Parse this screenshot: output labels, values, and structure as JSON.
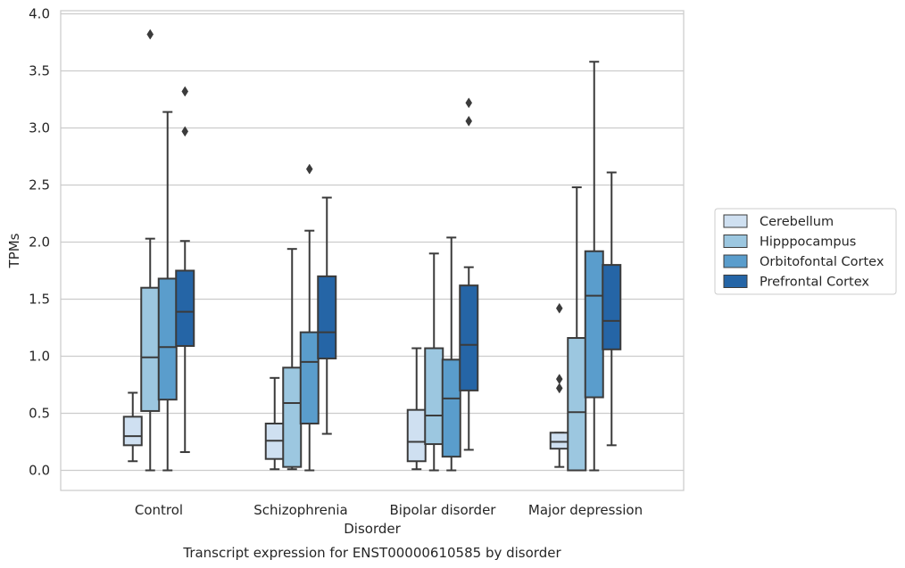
{
  "chart_data": {
    "type": "box",
    "title": "Transcript expression for ENST00000610585 by disorder",
    "xlabel": "Disorder",
    "ylabel": "TPMs",
    "ylim": [
      -0.18,
      4.03
    ],
    "yticks": [
      "0.0",
      "0.5",
      "1.0",
      "1.5",
      "2.0",
      "2.5",
      "3.0",
      "3.5",
      "4.0"
    ],
    "ytick_values": [
      0,
      0.5,
      1,
      1.5,
      2,
      2.5,
      3,
      3.5,
      4
    ],
    "grid": "horizontal",
    "legend_position": "right",
    "categories": [
      "Control",
      "Schizophrenia",
      "Bipolar disorder",
      "Major depression"
    ],
    "series": [
      {
        "name": "Cerebellum",
        "color": "#cfe0f1",
        "boxes": [
          {
            "whislo": 0.08,
            "q1": 0.22,
            "med": 0.3,
            "q3": 0.47,
            "whishi": 0.68,
            "fliers": []
          },
          {
            "whislo": 0.01,
            "q1": 0.1,
            "med": 0.26,
            "q3": 0.41,
            "whishi": 0.81,
            "fliers": []
          },
          {
            "whislo": 0.01,
            "q1": 0.08,
            "med": 0.25,
            "q3": 0.53,
            "whishi": 1.07,
            "fliers": []
          },
          {
            "whislo": 0.03,
            "q1": 0.19,
            "med": 0.25,
            "q3": 0.33,
            "whishi": 0.33,
            "fliers": [
              0.72,
              0.8,
              1.42
            ]
          }
        ]
      },
      {
        "name": "Hipppocampus",
        "color": "#9cc7e0",
        "boxes": [
          {
            "whislo": 0.0,
            "q1": 0.52,
            "med": 0.99,
            "q3": 1.6,
            "whishi": 2.03,
            "fliers": [
              3.82
            ]
          },
          {
            "whislo": 0.01,
            "q1": 0.03,
            "med": 0.59,
            "q3": 0.9,
            "whishi": 1.94,
            "fliers": []
          },
          {
            "whislo": 0.0,
            "q1": 0.23,
            "med": 0.48,
            "q3": 1.07,
            "whishi": 1.9,
            "fliers": []
          },
          {
            "whislo": 0.0,
            "q1": 0.0,
            "med": 0.51,
            "q3": 1.16,
            "whishi": 2.48,
            "fliers": []
          }
        ]
      },
      {
        "name": "Orbitofontal Cortex",
        "color": "#5a9dcc",
        "boxes": [
          {
            "whislo": 0.0,
            "q1": 0.62,
            "med": 1.08,
            "q3": 1.68,
            "whishi": 3.14,
            "fliers": []
          },
          {
            "whislo": 0.0,
            "q1": 0.41,
            "med": 0.95,
            "q3": 1.21,
            "whishi": 2.1,
            "fliers": [
              2.64
            ]
          },
          {
            "whislo": 0.0,
            "q1": 0.12,
            "med": 0.63,
            "q3": 0.97,
            "whishi": 2.04,
            "fliers": []
          },
          {
            "whislo": 0.0,
            "q1": 0.64,
            "med": 1.53,
            "q3": 1.92,
            "whishi": 3.58,
            "fliers": []
          }
        ]
      },
      {
        "name": "Prefrontal Cortex",
        "color": "#2565a6",
        "boxes": [
          {
            "whislo": 0.16,
            "q1": 1.09,
            "med": 1.39,
            "q3": 1.75,
            "whishi": 2.01,
            "fliers": [
              2.97,
              3.32
            ]
          },
          {
            "whislo": 0.32,
            "q1": 0.98,
            "med": 1.21,
            "q3": 1.7,
            "whishi": 2.39,
            "fliers": []
          },
          {
            "whislo": 0.18,
            "q1": 0.7,
            "med": 1.1,
            "q3": 1.62,
            "whishi": 1.78,
            "fliers": [
              3.06,
              3.22
            ]
          },
          {
            "whislo": 0.22,
            "q1": 1.06,
            "med": 1.31,
            "q3": 1.8,
            "whishi": 2.61,
            "fliers": []
          }
        ]
      }
    ]
  }
}
